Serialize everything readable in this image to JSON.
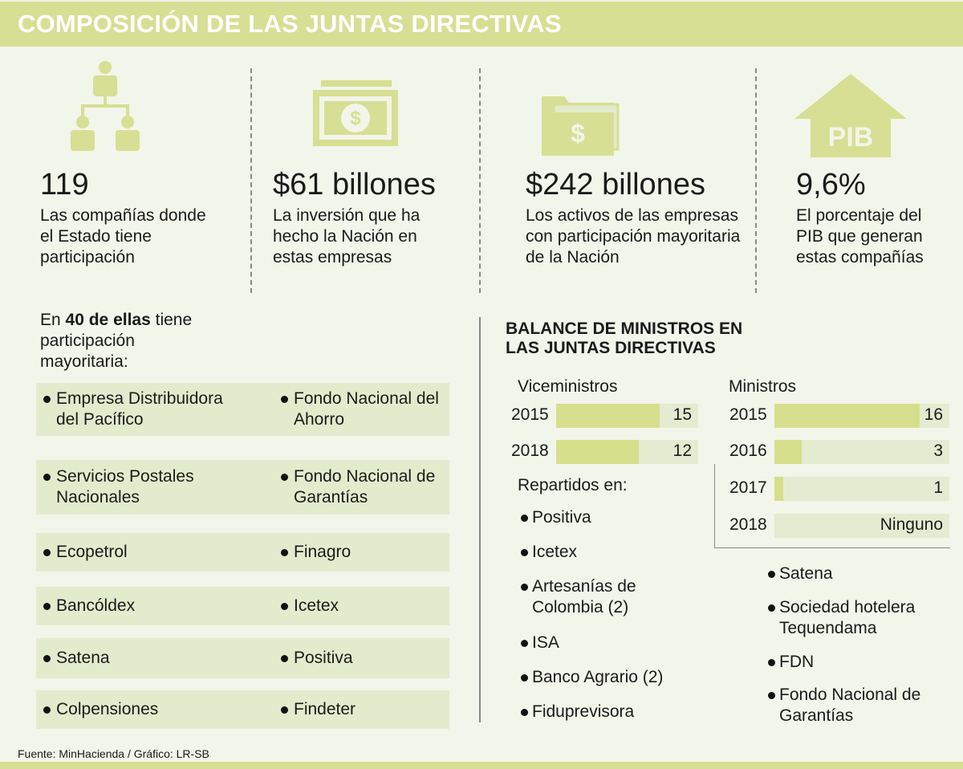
{
  "header": {
    "title": "COMPOSICIÓN DE LAS JUNTAS DIRECTIVAS"
  },
  "stats": [
    {
      "value": "119",
      "text": "Las compañías donde el Estado tiene participación"
    },
    {
      "value": "$61 billones",
      "text": "La inversión que ha hecho la Nación en estas empresas"
    },
    {
      "value": "$242 billones",
      "text": "Los activos de las empresas con participación mayoritaria de la Nación"
    },
    {
      "value": "9,6%",
      "text": "El porcentaje del PIB que generan estas compañías",
      "icon_label": "PIB"
    }
  ],
  "majority": {
    "intro_prefix": "En",
    "intro_bold": "40 de ellas",
    "intro_rest": "tiene participación mayoritaria:",
    "items": [
      "Empresa Distribuidora del Pacífico",
      "Fondo Nacional del Ahorro",
      "Servicios Postales Nacionales",
      "Fondo Nacional de Garantías",
      "Ecopetrol",
      "Finagro",
      "Bancóldex",
      "Icetex",
      "Satena",
      "Positiva",
      "Colpensiones",
      "Findeter"
    ]
  },
  "balance": {
    "title": "BALANCE DE MINISTROS EN LAS JUNTAS DIRECTIVAS",
    "viceministros": {
      "label": "Viceministros",
      "categories": [
        "2015",
        "2018"
      ],
      "values": [
        15,
        12
      ]
    },
    "repartidos_label": "Repartidos en:",
    "repartidos": [
      "Positiva",
      "Icetex",
      "Artesanías de Colombia (2)",
      "ISA",
      "Banco Agrario (2)",
      "Fiduprevisora"
    ],
    "ministros": {
      "label": "Ministros",
      "categories": [
        "2015",
        "2016",
        "2017",
        "2018"
      ],
      "values": [
        16,
        3,
        1,
        0
      ],
      "value_labels": [
        "16",
        "3",
        "1",
        "Ninguno"
      ]
    },
    "ministros_items": [
      "Satena",
      "Sociedad hotelera Tequendama",
      "FDN",
      "Fondo Nacional de Garantías"
    ]
  },
  "footer": {
    "source": "Fuente: MinHacienda  / Gráfico: LR-SB"
  }
}
